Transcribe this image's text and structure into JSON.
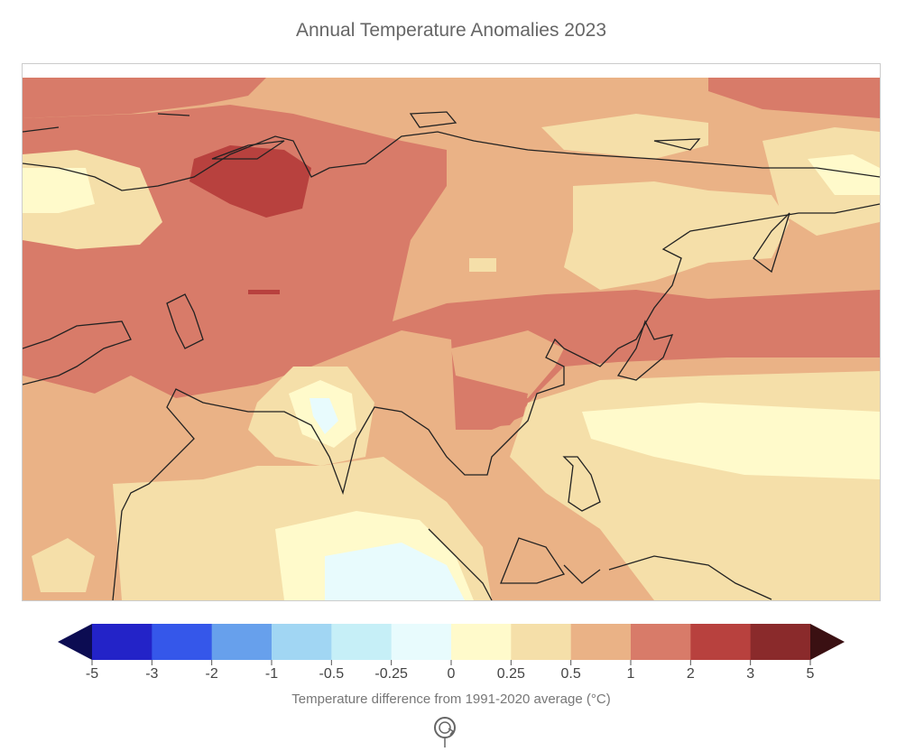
{
  "title": "Annual Temperature Anomalies 2023",
  "colorbar": {
    "label": "Temperature difference from 1991-2020 average (°C)",
    "ticks": [
      "-5",
      "-3",
      "-2",
      "-1",
      "-0.5",
      "-0.25",
      "0",
      "0.25",
      "0.5",
      "1",
      "2",
      "3",
      "5"
    ],
    "under_color": "#0c0c52",
    "over_color": "#3a1012",
    "bins": [
      "#2323c8",
      "#3557ea",
      "#67a0ec",
      "#a1d6f3",
      "#c6eff7",
      "#e8fbfd",
      "#fffacb",
      "#f5dfa9",
      "#eab286",
      "#d87b69",
      "#b8413e",
      "#8a2a2b"
    ]
  },
  "controls": {
    "refresh_icon": "refresh-icon"
  }
}
